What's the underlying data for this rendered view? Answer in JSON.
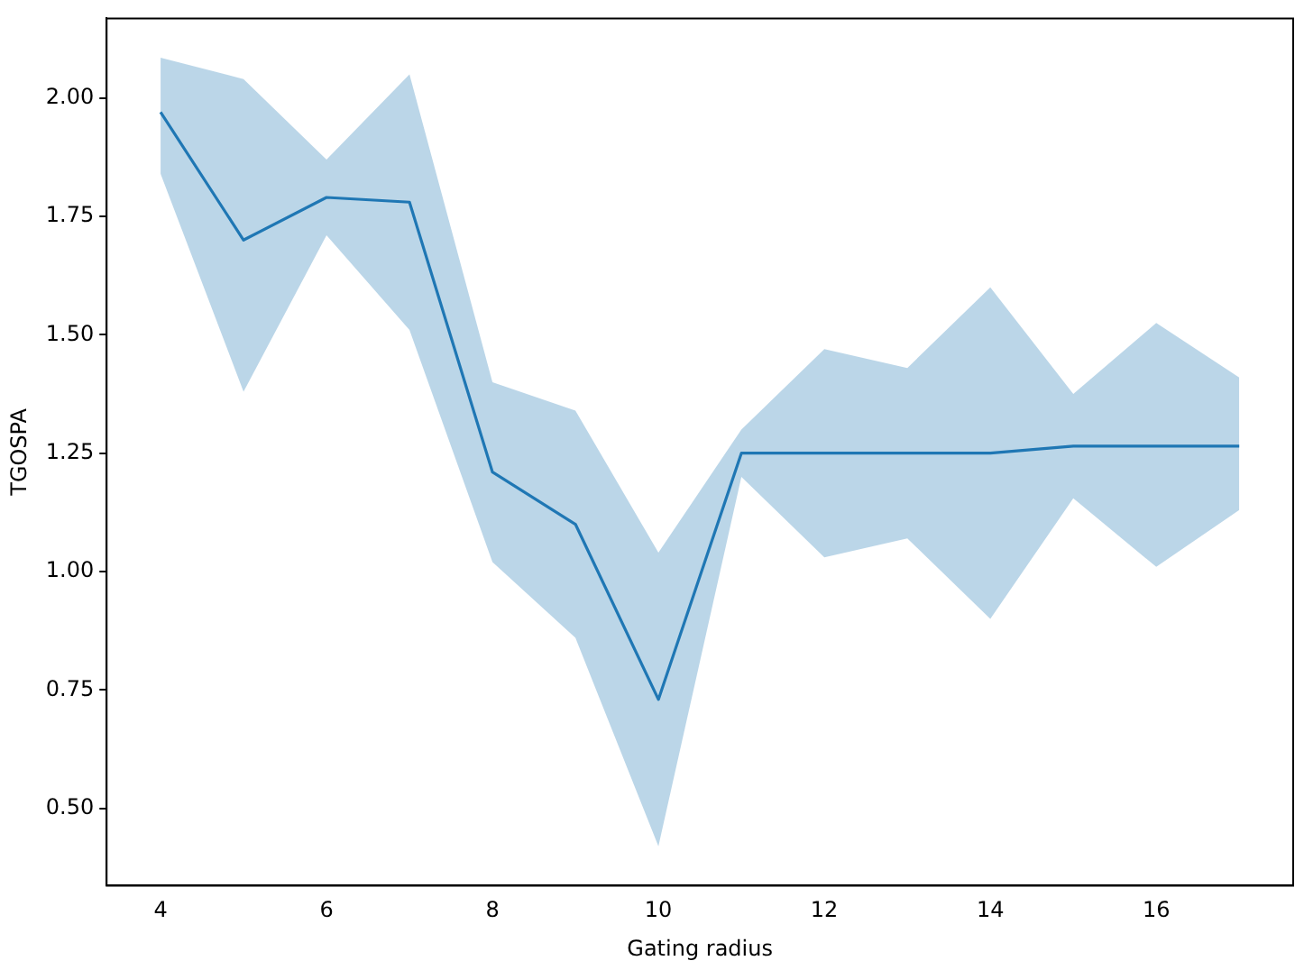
{
  "chart_data": {
    "type": "line",
    "xlabel": "Gating radius",
    "ylabel": "TGOSPA",
    "x": [
      4,
      5,
      6,
      7,
      8,
      9,
      10,
      11,
      12,
      13,
      14,
      15,
      16,
      17
    ],
    "series": [
      {
        "color": "#1f77b4",
        "values": [
          1.97,
          1.7,
          1.79,
          1.78,
          1.21,
          1.1,
          0.73,
          1.25,
          1.25,
          1.25,
          1.25,
          1.265,
          1.265,
          1.265
        ],
        "lower": [
          1.84,
          1.38,
          1.71,
          1.51,
          1.02,
          0.86,
          0.42,
          1.2,
          1.03,
          1.07,
          0.9,
          1.155,
          1.01,
          1.13
        ],
        "upper": [
          2.085,
          2.04,
          1.87,
          2.05,
          1.4,
          1.34,
          1.04,
          1.3,
          1.47,
          1.43,
          1.6,
          1.375,
          1.525,
          1.41
        ]
      }
    ],
    "xlim": [
      3.35,
      17.65
    ],
    "ylim": [
      0.337,
      2.168
    ],
    "xticks": [
      4,
      6,
      8,
      10,
      12,
      14,
      16
    ],
    "yticks": [
      {
        "value": 0.5,
        "label": "0.50"
      },
      {
        "value": 0.75,
        "label": "0.75"
      },
      {
        "value": 1,
        "label": "1.00"
      },
      {
        "value": 1.25,
        "label": "1.25"
      },
      {
        "value": 1.5,
        "label": "1.50"
      },
      {
        "value": 1.75,
        "label": "1.75"
      },
      {
        "value": 2,
        "label": "2.00"
      }
    ],
    "grid": false,
    "legend": false,
    "marker": "none",
    "line_style": "solid"
  }
}
